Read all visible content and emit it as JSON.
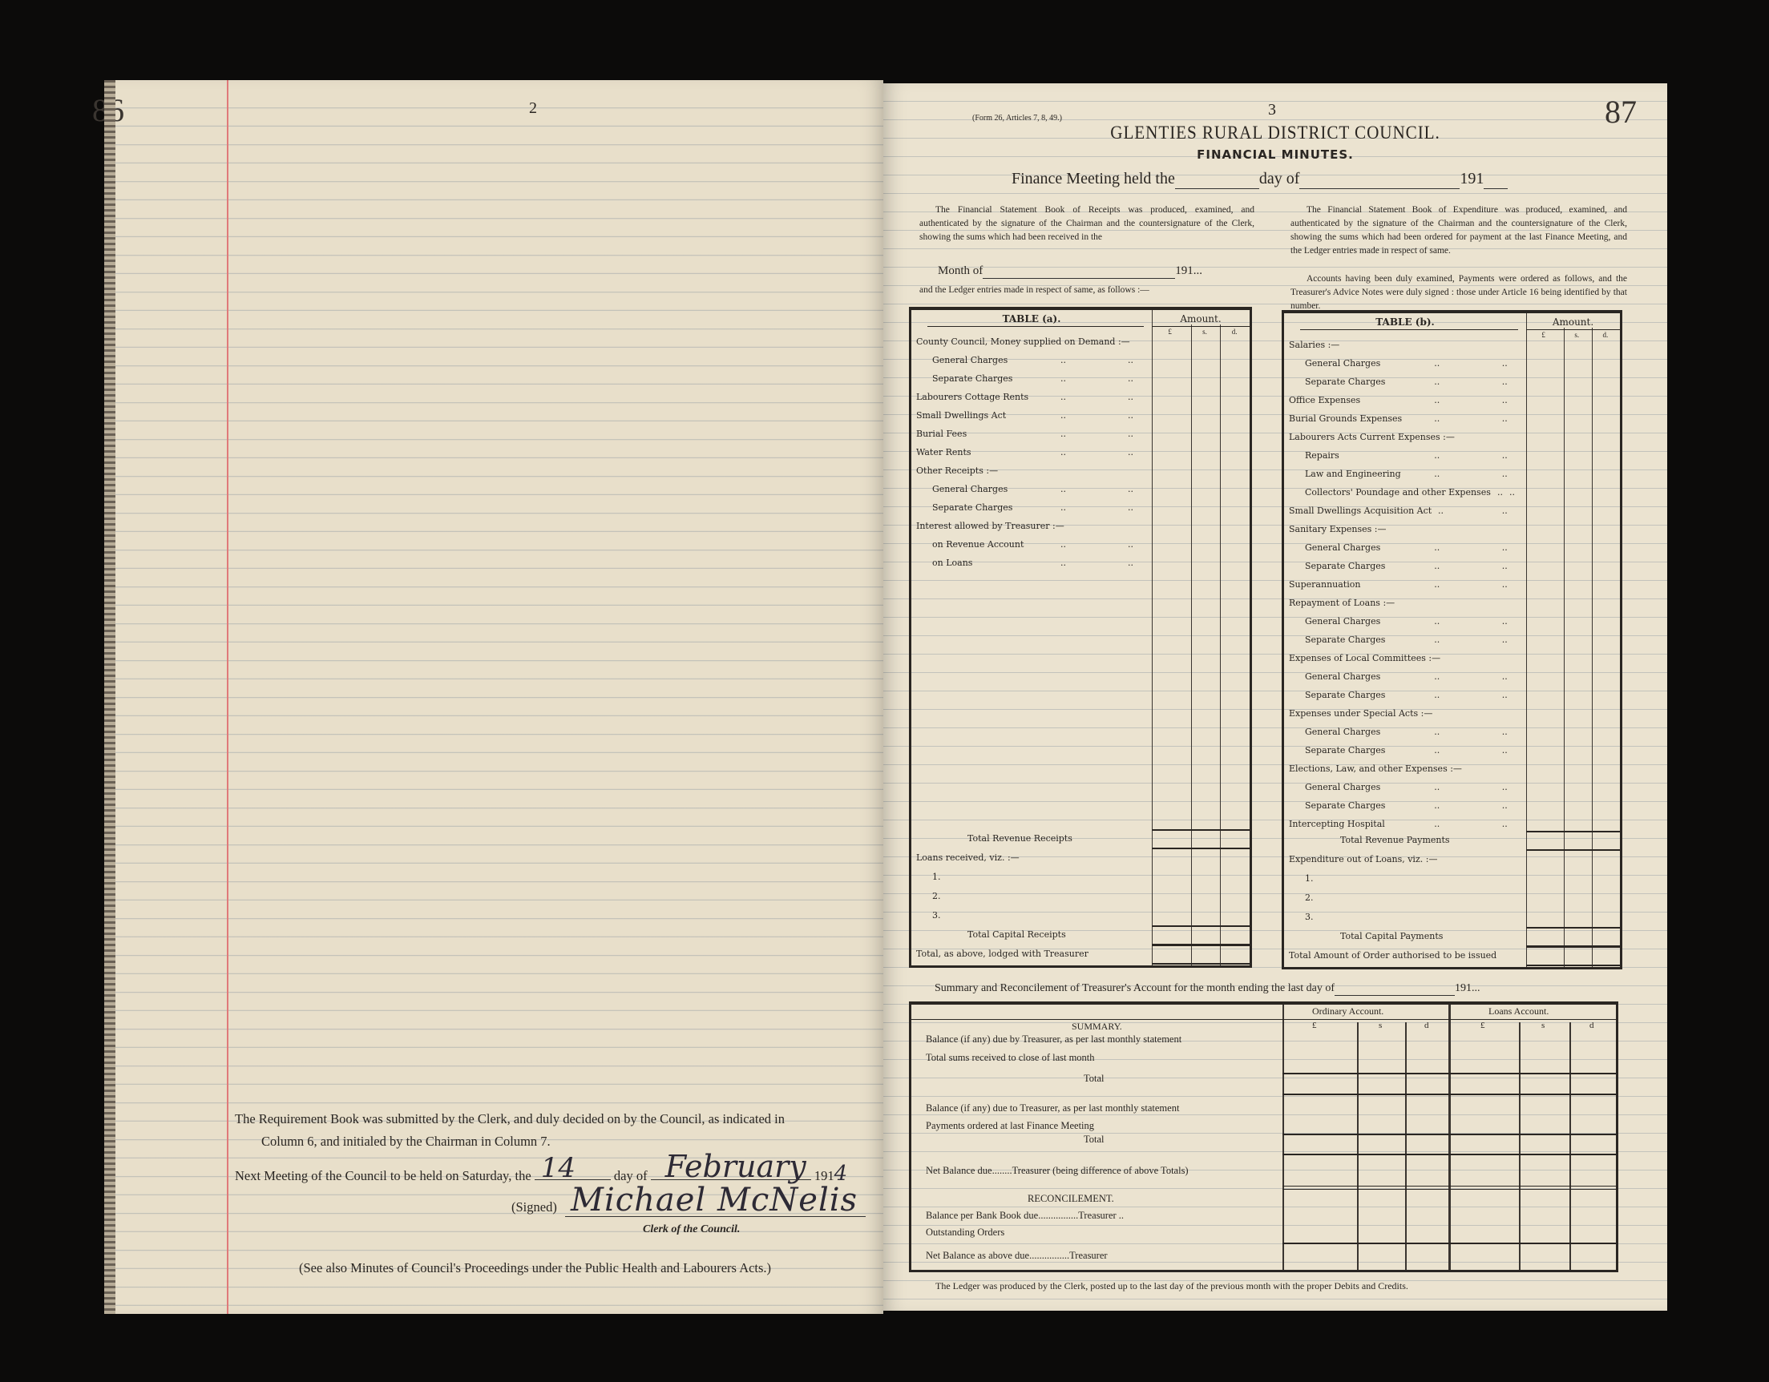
{
  "left_page": {
    "page_number": "86",
    "folio": "2",
    "requirement_text_1": "The Requirement Book was submitted by the Clerk, and duly decided on by the Council, as indicated in",
    "requirement_text_2": "Column 6, and initialed by the Chairman in Column 7.",
    "next_meeting_prefix": "Next Meeting of the Council to be held on Saturday, the",
    "next_meeting_day": "14",
    "day_of": "day of",
    "next_meeting_month": "February",
    "year_prefix": "191",
    "year_suffix": "4",
    "signed_label": "(Signed)",
    "signature": "Michael McNelis",
    "clerk_label": "Clerk of the Council.",
    "see_also": "(See also Minutes of Council's Proceedings under the Public Health and Labourers Acts.)"
  },
  "right_page": {
    "page_number": "87",
    "folio": "3",
    "form_note": "(Form 26, Articles 7, 8, 49.)",
    "title": "GLENTIES RURAL DISTRICT COUNCIL.",
    "subtitle": "FINANCIAL MINUTES.",
    "meeting_line": {
      "prefix": "Finance Meeting held the",
      "day_of": "day of",
      "year": "191"
    },
    "receipts_para": "The Financial Statement Book of Receipts was produced, examined, and authenticated by the signature of the Chairman and the countersignature of the Clerk, showing the sums which had been received in the",
    "month_of": "Month of",
    "month_year": "191...",
    "ledger_line": "and the Ledger entries made in respect of same, as follows :—",
    "expenditure_para": "The Financial Statement Book of Expenditure was produced, examined, and authenticated by the signature of the Chairman and the countersignature of the Clerk, showing the sums which had been ordered for payment at the last Finance Meeting, and the Ledger entries made in respect of same.",
    "accounts_para": "Accounts having been duly examined, Payments were ordered as follows, and the Treasurer's Advice Notes were duly signed : those under Article 16 being identified by that number.",
    "amount_label": "Amount.",
    "currency": [
      "£",
      "s.",
      "d."
    ],
    "leader": "..",
    "table_a": {
      "title": "TABLE (a).",
      "items": [
        {
          "label": "County Council, Money supplied on Demand :—",
          "items": [
            {
              "label": "General Charges"
            },
            {
              "label": "Separate Charges"
            }
          ]
        },
        {
          "label": "Labourers Cottage Rents"
        },
        {
          "label": "Small Dwellings Act"
        },
        {
          "label": "Burial Fees"
        },
        {
          "label": "Water Rents"
        },
        {
          "label": "Other Receipts :—",
          "items": [
            {
              "label": "General Charges"
            },
            {
              "label": "Separate Charges"
            }
          ]
        },
        {
          "label": "Interest allowed by Treasurer :—",
          "items": [
            {
              "label": "on Revenue Account"
            },
            {
              "label": "on Loans"
            }
          ]
        }
      ],
      "totals": [
        {
          "label": "Total Revenue Receipts",
          "total": true
        },
        {
          "label": "Loans received, viz. :—"
        },
        {
          "label": "1.",
          "sub": true
        },
        {
          "label": "2.",
          "sub": true
        },
        {
          "label": "3.",
          "sub": true
        },
        {
          "label": "Total Capital Receipts",
          "total": true
        },
        {
          "label": "Total, as above, lodged with Treasurer",
          "total": true
        }
      ]
    },
    "table_b": {
      "title": "TABLE (b).",
      "items": [
        {
          "label": "Salaries :—",
          "items": [
            {
              "label": "General Charges"
            },
            {
              "label": "Separate Charges"
            }
          ]
        },
        {
          "label": "Office Expenses"
        },
        {
          "label": "Burial Grounds Expenses"
        },
        {
          "label": "Labourers Acts Current Expenses :—",
          "items": [
            {
              "label": "Repairs"
            },
            {
              "label": "Law and Engineering"
            },
            {
              "label": "Collectors' Poundage and other Expenses"
            }
          ]
        },
        {
          "label": "Small Dwellings Acquisition Act"
        },
        {
          "label": "Sanitary Expenses :—",
          "items": [
            {
              "label": "General Charges"
            },
            {
              "label": "Separate Charges"
            }
          ]
        },
        {
          "label": "Superannuation"
        },
        {
          "label": "Repayment of Loans :—",
          "items": [
            {
              "label": "General Charges"
            },
            {
              "label": "Separate Charges"
            }
          ]
        },
        {
          "label": "Expenses of Local Committees :—",
          "items": [
            {
              "label": "General Charges"
            },
            {
              "label": "Separate Charges"
            }
          ]
        },
        {
          "label": "Expenses under Special Acts :—",
          "items": [
            {
              "label": "General Charges"
            },
            {
              "label": "Separate Charges"
            }
          ]
        },
        {
          "label": "Elections, Law, and other Expenses :—",
          "items": [
            {
              "label": "General Charges"
            },
            {
              "label": "Separate Charges"
            }
          ]
        },
        {
          "label": "Intercepting Hospital"
        }
      ],
      "totals": [
        {
          "label": "Total Revenue Payments",
          "total": true
        },
        {
          "label": "Expenditure out of Loans, viz. :—"
        },
        {
          "label": "1.",
          "sub": true
        },
        {
          "label": "2.",
          "sub": true
        },
        {
          "label": "3.",
          "sub": true
        },
        {
          "label": "Total Capital Payments",
          "total": true
        },
        {
          "label": "Total Amount of Order authorised to be issued",
          "total": true
        }
      ]
    },
    "summary": {
      "heading": "Summary and Reconcilement of Treasurer's Account for the month ending the last day of",
      "year": "191...",
      "ordinary_account": "Ordinary Account.",
      "loans_account": "Loans Account.",
      "currency": [
        "£",
        "s",
        "d"
      ],
      "summary_label": "SUMMARY.",
      "rows": [
        "Balance (if any) due by Treasurer, as per last monthly statement",
        "Total sums received to close of last month",
        "Total",
        "Balance (if any) due to Treasurer, as per last monthly statement",
        "Payments ordered at last Finance Meeting",
        "Total",
        "Net Balance due........Treasurer (being difference of above Totals)"
      ],
      "reconcilement_label": "RECONCILEMENT.",
      "reconcilement_rows": [
        "Balance per Bank Book due................Treasurer ..",
        "Outstanding Orders",
        "Net Balance as above due................Treasurer"
      ],
      "footer": "The Ledger was produced by the Clerk, posted up to the last day of the previous month with the proper Debits and Credits."
    }
  }
}
